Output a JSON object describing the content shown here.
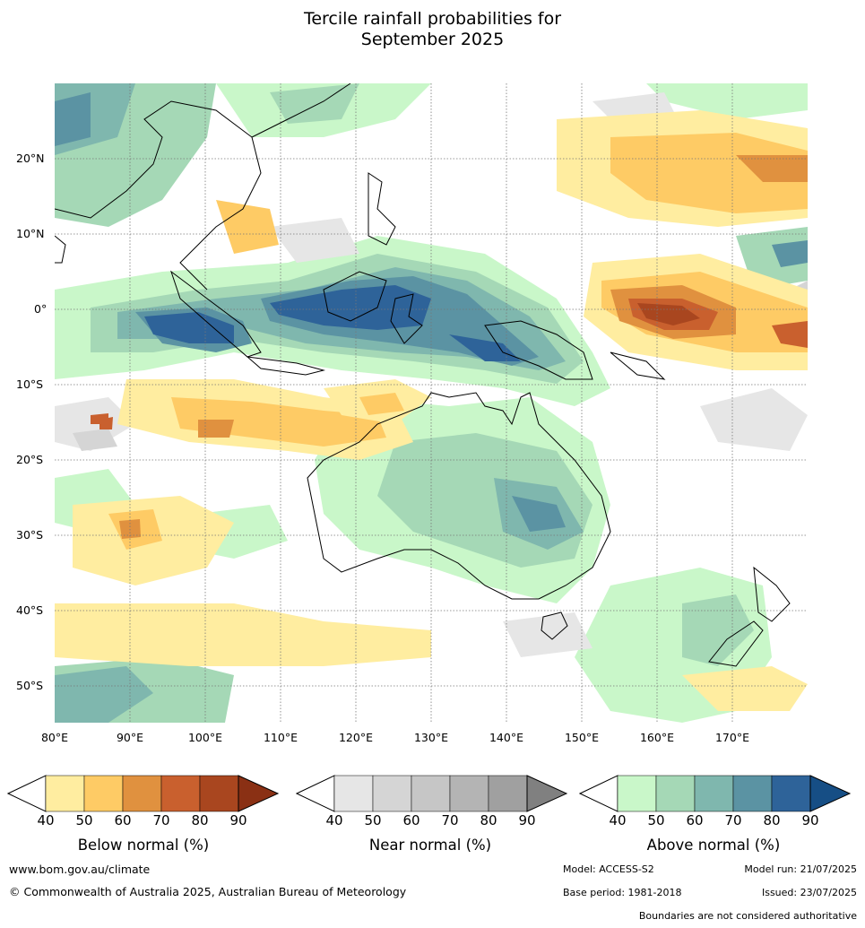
{
  "title": [
    "Tercile rainfall probabilities for",
    "September 2025"
  ],
  "lat_ticks": [
    "20°N",
    "10°N",
    "0°",
    "10°S",
    "20°S",
    "30°S",
    "40°S",
    "50°S"
  ],
  "lon_ticks": [
    "80°E",
    "90°E",
    "100°E",
    "110°E",
    "120°E",
    "130°E",
    "140°E",
    "150°E",
    "160°E",
    "170°E"
  ],
  "legends": [
    {
      "label": "Below normal (%)",
      "ticks": [
        "40",
        "50",
        "60",
        "70",
        "80",
        "90"
      ],
      "colors": [
        "#ffeda0",
        "#fecb65",
        "#e0913f",
        "#c9602e",
        "#a9461f",
        "#8a3014"
      ]
    },
    {
      "label": "Near normal (%)",
      "ticks": [
        "40",
        "50",
        "60",
        "70",
        "80",
        "90"
      ],
      "colors": [
        "#e6e6e6",
        "#d5d5d5",
        "#c6c6c6",
        "#b4b4b4",
        "#a0a0a0",
        "#808080"
      ]
    },
    {
      "label": "Above normal (%)",
      "ticks": [
        "40",
        "50",
        "60",
        "70",
        "80",
        "90"
      ],
      "colors": [
        "#c9f7c9",
        "#a5d8b6",
        "#7fb7ae",
        "#5b93a3",
        "#2e6399",
        "#164e85"
      ]
    }
  ],
  "footer": {
    "website": "www.bom.gov.au/climate",
    "copyright": "© Commonwealth of Australia 2025, Australian Bureau of Meteorology",
    "model": "Model: ACCESS-S2",
    "model_run": "Model run: 21/07/2025",
    "base_period": "Base period: 1981-2018",
    "issued": "Issued: 23/07/2025",
    "disclaimer": "Boundaries are not considered authoritative"
  }
}
